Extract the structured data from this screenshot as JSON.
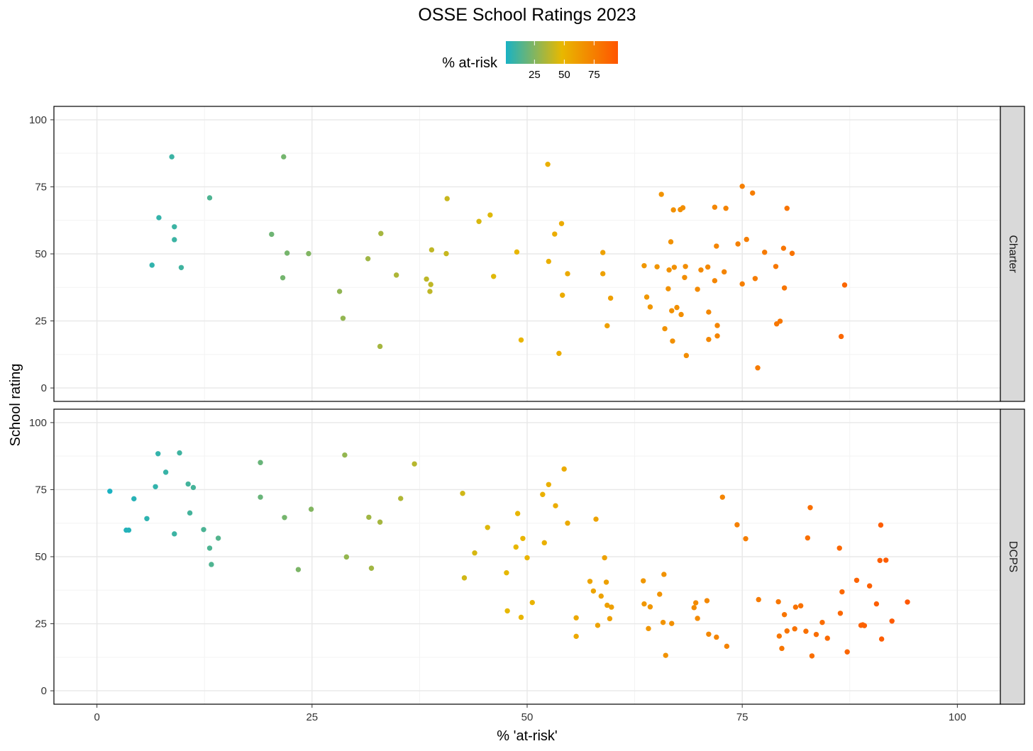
{
  "chart_data": {
    "type": "scatter",
    "title": "OSSE School Ratings 2023",
    "xlabel": "% 'at-risk'",
    "ylabel": "School rating",
    "xlim": [
      -5,
      105
    ],
    "ylim": [
      -5,
      105
    ],
    "x_ticks": [
      0,
      25,
      50,
      75,
      100
    ],
    "y_ticks": [
      0,
      25,
      50,
      75,
      100
    ],
    "grid": true,
    "color_legend": {
      "title": "% at-risk",
      "ticks": [
        25,
        50,
        75
      ],
      "range": [
        1,
        95
      ],
      "colors": [
        "#19b2c4",
        "#e8b800",
        "#ff5500"
      ],
      "placement": "top"
    },
    "facets": [
      {
        "name": "Charter",
        "points": [
          [
            8.7,
            86.2
          ],
          [
            21.7,
            86.2
          ],
          [
            13.1,
            70.9
          ],
          [
            7.2,
            63.5
          ],
          [
            9.0,
            60.1
          ],
          [
            9.0,
            55.3
          ],
          [
            6.4,
            45.8
          ],
          [
            9.8,
            44.9
          ],
          [
            20.3,
            57.3
          ],
          [
            22.1,
            50.3
          ],
          [
            24.6,
            50.1
          ],
          [
            21.6,
            41.1
          ],
          [
            28.2,
            36.0
          ],
          [
            28.6,
            26.0
          ],
          [
            31.5,
            48.2
          ],
          [
            33.0,
            57.6
          ],
          [
            32.9,
            15.5
          ],
          [
            34.8,
            42.1
          ],
          [
            38.3,
            40.6
          ],
          [
            38.7,
            36.0
          ],
          [
            38.9,
            51.5
          ],
          [
            38.8,
            38.6
          ],
          [
            40.7,
            70.6
          ],
          [
            40.6,
            50.1
          ],
          [
            44.4,
            62.1
          ],
          [
            45.7,
            64.5
          ],
          [
            46.1,
            41.6
          ],
          [
            48.8,
            50.7
          ],
          [
            49.3,
            17.9
          ],
          [
            52.4,
            83.4
          ],
          [
            52.5,
            47.2
          ],
          [
            53.2,
            57.4
          ],
          [
            54.0,
            61.3
          ],
          [
            54.7,
            42.6
          ],
          [
            54.1,
            34.6
          ],
          [
            53.7,
            12.9
          ],
          [
            58.8,
            50.5
          ],
          [
            58.8,
            42.6
          ],
          [
            59.7,
            33.5
          ],
          [
            59.3,
            23.2
          ],
          [
            63.6,
            45.6
          ],
          [
            63.9,
            33.9
          ],
          [
            64.3,
            30.2
          ],
          [
            65.1,
            45.2
          ],
          [
            65.6,
            72.2
          ],
          [
            66.0,
            22.1
          ],
          [
            66.4,
            37.0
          ],
          [
            66.5,
            44.0
          ],
          [
            66.7,
            54.5
          ],
          [
            66.8,
            28.8
          ],
          [
            66.9,
            17.5
          ],
          [
            67.0,
            66.4
          ],
          [
            67.1,
            45.0
          ],
          [
            67.4,
            30.0
          ],
          [
            67.8,
            66.5
          ],
          [
            67.9,
            27.4
          ],
          [
            68.1,
            67.2
          ],
          [
            68.3,
            41.2
          ],
          [
            68.4,
            45.3
          ],
          [
            68.5,
            12.1
          ],
          [
            69.8,
            36.8
          ],
          [
            70.2,
            44.0
          ],
          [
            71.0,
            45.1
          ],
          [
            71.1,
            28.3
          ],
          [
            71.1,
            18.1
          ],
          [
            71.8,
            67.4
          ],
          [
            71.8,
            40.0
          ],
          [
            72.0,
            52.9
          ],
          [
            72.1,
            23.3
          ],
          [
            72.1,
            19.4
          ],
          [
            72.9,
            43.3
          ],
          [
            73.1,
            67.0
          ],
          [
            74.5,
            53.7
          ],
          [
            75.0,
            75.2
          ],
          [
            75.0,
            38.8
          ],
          [
            75.5,
            55.4
          ],
          [
            76.2,
            72.7
          ],
          [
            76.5,
            40.8
          ],
          [
            76.8,
            7.5
          ],
          [
            77.6,
            50.6
          ],
          [
            78.9,
            45.3
          ],
          [
            79.0,
            23.9
          ],
          [
            79.4,
            24.9
          ],
          [
            79.8,
            52.1
          ],
          [
            79.9,
            37.3
          ],
          [
            80.2,
            67.0
          ],
          [
            80.8,
            50.2
          ],
          [
            86.5,
            19.2
          ],
          [
            86.9,
            38.4
          ]
        ]
      },
      {
        "name": "DCPS",
        "points": [
          [
            1.5,
            74.4
          ],
          [
            3.4,
            59.9
          ],
          [
            3.7,
            59.9
          ],
          [
            4.3,
            71.6
          ],
          [
            5.8,
            64.2
          ],
          [
            6.8,
            76.1
          ],
          [
            7.1,
            88.4
          ],
          [
            8.0,
            81.5
          ],
          [
            9.0,
            58.5
          ],
          [
            9.6,
            88.7
          ],
          [
            10.6,
            77.1
          ],
          [
            10.8,
            66.3
          ],
          [
            11.2,
            75.8
          ],
          [
            12.4,
            60.1
          ],
          [
            13.1,
            53.2
          ],
          [
            13.3,
            47.1
          ],
          [
            14.1,
            56.9
          ],
          [
            19.0,
            85.1
          ],
          [
            19.0,
            72.2
          ],
          [
            21.8,
            64.6
          ],
          [
            23.4,
            45.2
          ],
          [
            24.9,
            67.7
          ],
          [
            28.8,
            87.9
          ],
          [
            29.0,
            49.9
          ],
          [
            31.6,
            64.7
          ],
          [
            31.9,
            45.7
          ],
          [
            32.9,
            62.9
          ],
          [
            35.3,
            71.7
          ],
          [
            36.9,
            84.6
          ],
          [
            42.5,
            73.6
          ],
          [
            42.7,
            42.1
          ],
          [
            43.9,
            51.4
          ],
          [
            45.4,
            60.9
          ],
          [
            47.6,
            44.0
          ],
          [
            47.7,
            29.8
          ],
          [
            48.7,
            53.6
          ],
          [
            48.9,
            66.1
          ],
          [
            49.3,
            27.4
          ],
          [
            49.5,
            56.8
          ],
          [
            50.0,
            49.6
          ],
          [
            50.6,
            32.9
          ],
          [
            51.8,
            73.2
          ],
          [
            52.0,
            55.2
          ],
          [
            52.5,
            76.9
          ],
          [
            53.3,
            69.0
          ],
          [
            54.3,
            82.7
          ],
          [
            54.7,
            62.5
          ],
          [
            55.7,
            27.2
          ],
          [
            55.7,
            20.3
          ],
          [
            57.3,
            40.8
          ],
          [
            57.7,
            37.2
          ],
          [
            58.0,
            64.0
          ],
          [
            58.2,
            24.4
          ],
          [
            58.6,
            35.3
          ],
          [
            59.0,
            49.6
          ],
          [
            59.2,
            40.5
          ],
          [
            59.3,
            31.9
          ],
          [
            59.6,
            26.9
          ],
          [
            59.8,
            31.2
          ],
          [
            63.5,
            41.0
          ],
          [
            63.6,
            32.4
          ],
          [
            64.1,
            23.2
          ],
          [
            64.3,
            31.3
          ],
          [
            65.4,
            36.0
          ],
          [
            65.8,
            25.5
          ],
          [
            65.9,
            43.4
          ],
          [
            66.1,
            13.2
          ],
          [
            66.8,
            25.1
          ],
          [
            69.4,
            31.0
          ],
          [
            69.6,
            32.8
          ],
          [
            69.8,
            27.0
          ],
          [
            70.9,
            33.6
          ],
          [
            71.1,
            21.1
          ],
          [
            72.0,
            20.0
          ],
          [
            72.7,
            72.2
          ],
          [
            73.2,
            16.6
          ],
          [
            74.4,
            61.9
          ],
          [
            75.4,
            56.7
          ],
          [
            76.9,
            34.0
          ],
          [
            79.2,
            33.2
          ],
          [
            79.3,
            20.4
          ],
          [
            79.6,
            15.8
          ],
          [
            79.9,
            28.4
          ],
          [
            80.2,
            22.3
          ],
          [
            81.1,
            23.1
          ],
          [
            81.2,
            31.2
          ],
          [
            81.8,
            31.7
          ],
          [
            82.4,
            22.2
          ],
          [
            82.6,
            57.0
          ],
          [
            82.9,
            68.3
          ],
          [
            83.1,
            13.0
          ],
          [
            83.6,
            21.0
          ],
          [
            84.3,
            25.5
          ],
          [
            84.9,
            19.6
          ],
          [
            86.3,
            53.2
          ],
          [
            86.4,
            28.9
          ],
          [
            86.6,
            36.9
          ],
          [
            87.2,
            14.5
          ],
          [
            88.3,
            41.2
          ],
          [
            88.8,
            24.4
          ],
          [
            89.0,
            24.6
          ],
          [
            89.2,
            24.3
          ],
          [
            89.8,
            39.1
          ],
          [
            90.6,
            32.4
          ],
          [
            91.0,
            48.6
          ],
          [
            91.1,
            61.8
          ],
          [
            91.2,
            19.3
          ],
          [
            91.7,
            48.7
          ],
          [
            92.4,
            26.0
          ],
          [
            94.2,
            33.1
          ]
        ]
      }
    ]
  }
}
